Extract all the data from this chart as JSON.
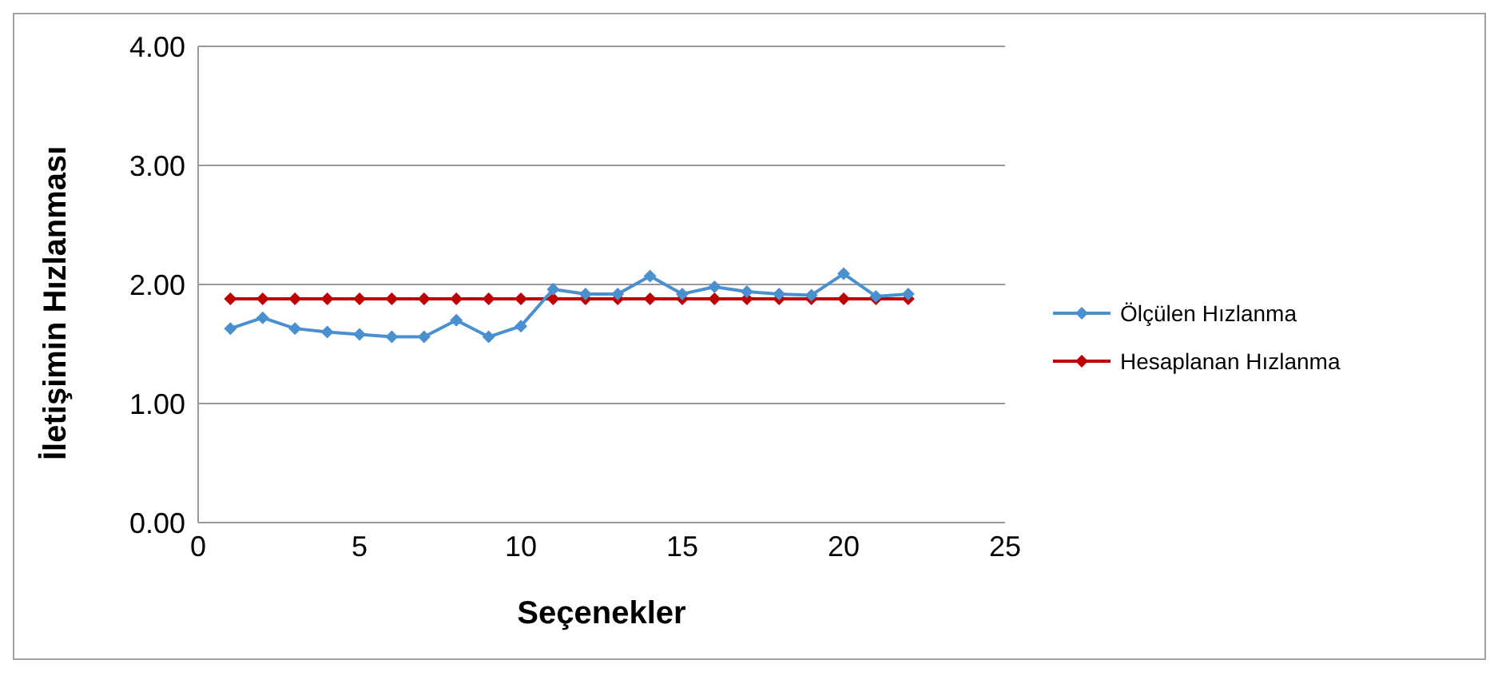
{
  "chart_data": {
    "type": "line",
    "xlabel": "Seçenekler",
    "ylabel": "İletişimin Hızlanması",
    "x": [
      1,
      2,
      3,
      4,
      5,
      6,
      7,
      8,
      9,
      10,
      11,
      12,
      13,
      14,
      15,
      16,
      17,
      18,
      19,
      20,
      21,
      22
    ],
    "series": [
      {
        "name": "Ölçülen Hızlanma",
        "color": "#4a8fd0",
        "values": [
          1.63,
          1.72,
          1.63,
          1.6,
          1.58,
          1.56,
          1.56,
          1.7,
          1.56,
          1.65,
          1.96,
          1.92,
          1.92,
          2.07,
          1.92,
          1.98,
          1.94,
          1.92,
          1.91,
          2.09,
          1.9,
          1.92
        ]
      },
      {
        "name": "Hesaplanan Hızlanma",
        "color": "#c00000",
        "values": [
          1.88,
          1.88,
          1.88,
          1.88,
          1.88,
          1.88,
          1.88,
          1.88,
          1.88,
          1.88,
          1.88,
          1.88,
          1.88,
          1.88,
          1.88,
          1.88,
          1.88,
          1.88,
          1.88,
          1.88,
          1.88,
          1.88
        ]
      }
    ],
    "xlim": [
      0,
      25
    ],
    "xticks": [
      0,
      5,
      10,
      15,
      20,
      25
    ],
    "ylim": [
      0,
      4
    ],
    "yticks": [
      {
        "value": 0,
        "label": "0.00"
      },
      {
        "value": 1,
        "label": "1.00"
      },
      {
        "value": 2,
        "label": "2.00"
      },
      {
        "value": 3,
        "label": "3.00"
      },
      {
        "value": 4,
        "label": "4.00"
      }
    ],
    "grid": "y",
    "legend": "right",
    "marker": "diamond",
    "line_style": "solid"
  }
}
